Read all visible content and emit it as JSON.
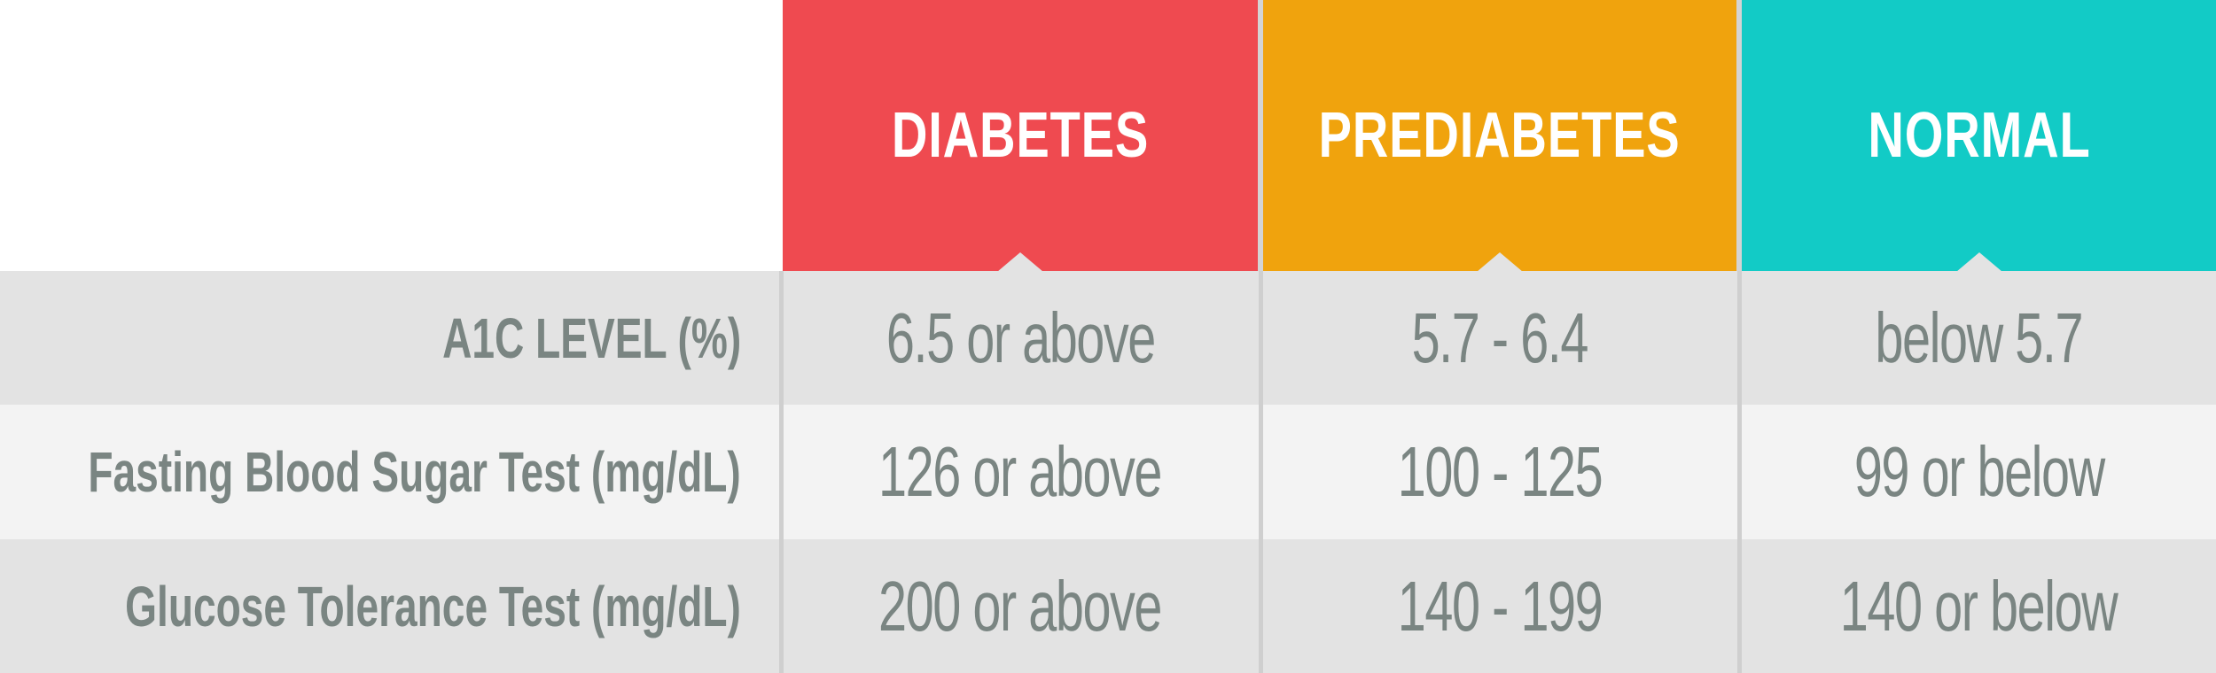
{
  "chart_data": {
    "type": "table",
    "columns": [
      "DIABETES",
      "PREDIABETES",
      "NORMAL"
    ],
    "rows": [
      {
        "label": "A1C LEVEL (%)",
        "values": [
          "6.5 or above",
          "5.7 - 6.4",
          "below 5.7"
        ]
      },
      {
        "label": "Fasting Blood Sugar Test (mg/dL)",
        "values": [
          "126 or above",
          "100 - 125",
          "99 or below"
        ]
      },
      {
        "label": "Glucose Tolerance Test (mg/dL)",
        "values": [
          "200 or above",
          "140 - 199",
          "140 or below"
        ]
      }
    ],
    "column_colors": [
      "#ef4a50",
      "#f0a30d",
      "#12cbc6"
    ]
  }
}
